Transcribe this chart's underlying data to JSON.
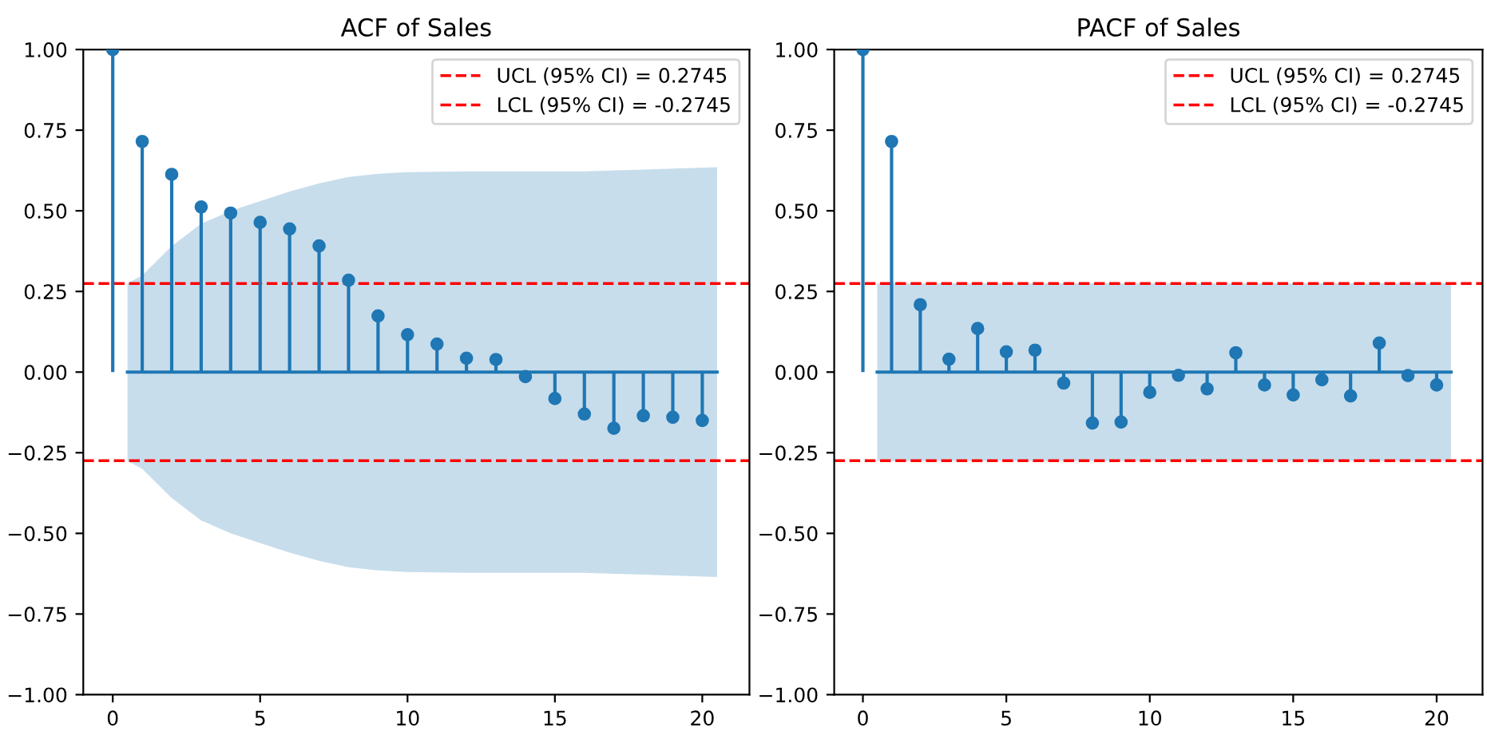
{
  "chart_data": [
    {
      "type": "lollipop",
      "title": "ACF of Sales",
      "xlim": [
        -1,
        21.6
      ],
      "ylim": [
        -1,
        1
      ],
      "xticks": [
        0,
        5,
        10,
        15,
        20
      ],
      "yticks": [
        {
          "value": -1,
          "label": "−1.00"
        },
        {
          "value": -0.75,
          "label": "−0.75"
        },
        {
          "value": -0.5,
          "label": "−0.50"
        },
        {
          "value": -0.25,
          "label": "−0.25"
        },
        {
          "value": 0,
          "label": "0.00"
        },
        {
          "value": 0.25,
          "label": "0.25"
        },
        {
          "value": 0.5,
          "label": "0.50"
        },
        {
          "value": 0.75,
          "label": "0.75"
        },
        {
          "value": 1,
          "label": "1.00"
        }
      ],
      "grid": false,
      "legend": "top right",
      "marker": "circle",
      "series": [
        {
          "type": "line",
          "color": "#1f77b4",
          "marker": "none",
          "x": [
            0.5,
            1,
            2,
            3,
            4,
            5,
            6,
            7,
            8,
            9,
            10,
            12,
            14,
            16,
            18,
            20.5
          ],
          "values": [
            0,
            0,
            0,
            0,
            0,
            0,
            0,
            0,
            0,
            0,
            0,
            0,
            0,
            0,
            0,
            0
          ],
          "lower": [
            -0.275,
            -0.3,
            -0.39,
            -0.46,
            -0.5,
            -0.53,
            -0.56,
            -0.585,
            -0.605,
            -0.615,
            -0.62,
            -0.622,
            -0.622,
            -0.622,
            -0.628,
            -0.635
          ],
          "upper": [
            0.275,
            0.3,
            0.39,
            0.46,
            0.5,
            0.53,
            0.56,
            0.585,
            0.605,
            0.615,
            0.62,
            0.622,
            0.622,
            0.622,
            0.628,
            0.635
          ]
        },
        {
          "type": "lollipop",
          "color": "#1f77b4",
          "x": [
            0,
            1,
            2,
            3,
            4,
            5,
            6,
            7,
            8,
            9,
            10,
            11,
            12,
            13,
            14,
            15,
            16,
            17,
            18,
            19,
            20
          ],
          "values": [
            1,
            0.715,
            0.613,
            0.512,
            0.493,
            0.464,
            0.444,
            0.391,
            0.285,
            0.174,
            0.116,
            0.087,
            0.043,
            0.039,
            -0.014,
            -0.082,
            -0.13,
            -0.174,
            -0.135,
            -0.14,
            -0.15
          ]
        }
      ],
      "ref_lines": [
        {
          "axis": "y",
          "value": 0.2745,
          "label": "UCL (95% CI) = 0.2745",
          "color": "#ff0000",
          "line_style": "dashed"
        },
        {
          "axis": "y",
          "value": -0.2745,
          "label": "LCL (95% CI) = -0.2745",
          "color": "#ff0000",
          "line_style": "dashed"
        }
      ]
    },
    {
      "type": "lollipop",
      "title": "PACF of Sales",
      "xlim": [
        -1,
        21.6
      ],
      "ylim": [
        -1,
        1
      ],
      "xticks": [
        0,
        5,
        10,
        15,
        20
      ],
      "yticks": [
        {
          "value": -1,
          "label": "−1.00"
        },
        {
          "value": -0.75,
          "label": "−0.75"
        },
        {
          "value": -0.5,
          "label": "−0.50"
        },
        {
          "value": -0.25,
          "label": "−0.25"
        },
        {
          "value": 0,
          "label": "0.00"
        },
        {
          "value": 0.25,
          "label": "0.25"
        },
        {
          "value": 0.5,
          "label": "0.50"
        },
        {
          "value": 0.75,
          "label": "0.75"
        },
        {
          "value": 1,
          "label": "1.00"
        }
      ],
      "grid": false,
      "legend": "top right",
      "marker": "circle",
      "series": [
        {
          "type": "line",
          "color": "#1f77b4",
          "marker": "none",
          "x": [
            0.5,
            20.5
          ],
          "values": [
            0,
            0
          ],
          "lower": [
            -0.275,
            -0.275
          ],
          "upper": [
            0.275,
            0.275
          ]
        },
        {
          "type": "lollipop",
          "color": "#1f77b4",
          "x": [
            0,
            1,
            2,
            3,
            4,
            5,
            6,
            7,
            8,
            9,
            10,
            11,
            12,
            13,
            14,
            15,
            16,
            17,
            18,
            19,
            20
          ],
          "values": [
            1,
            0.715,
            0.209,
            0.04,
            0.135,
            0.063,
            0.068,
            -0.034,
            -0.158,
            -0.155,
            -0.063,
            -0.01,
            -0.052,
            0.06,
            -0.04,
            -0.071,
            -0.024,
            -0.074,
            0.09,
            -0.011,
            -0.04
          ]
        }
      ],
      "ref_lines": [
        {
          "axis": "y",
          "value": 0.2745,
          "label": "UCL (95% CI) = 0.2745",
          "color": "#ff0000",
          "line_style": "dashed"
        },
        {
          "axis": "y",
          "value": -0.2745,
          "label": "LCL (95% CI) = -0.2745",
          "color": "#ff0000",
          "line_style": "dashed"
        }
      ]
    }
  ]
}
